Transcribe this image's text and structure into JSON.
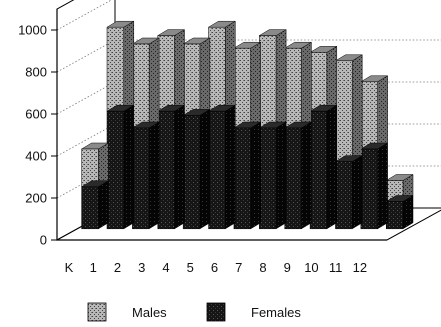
{
  "chart_data": {
    "type": "bar",
    "style": "3d-stacked",
    "categories": [
      "K",
      "1",
      "2",
      "3",
      "4",
      "5",
      "6",
      "7",
      "8",
      "9",
      "10",
      "11",
      "12"
    ],
    "series": [
      {
        "name": "Males",
        "values": [
          180,
          400,
          400,
          360,
          340,
          400,
          380,
          440,
          380,
          280,
          480,
          320,
          100
        ]
      },
      {
        "name": "Females",
        "values": [
          200,
          560,
          480,
          560,
          540,
          560,
          480,
          480,
          480,
          560,
          320,
          380,
          130
        ]
      }
    ],
    "y_ticks": [
      "0",
      "200",
      "400",
      "600",
      "800",
      "1000"
    ],
    "ylim": [
      0,
      1100
    ],
    "grid": "dotted",
    "legend_position": "bottom",
    "colors": {
      "males": "#b4b4b4",
      "females": "#1a1a1a",
      "axis": "#000000"
    }
  }
}
